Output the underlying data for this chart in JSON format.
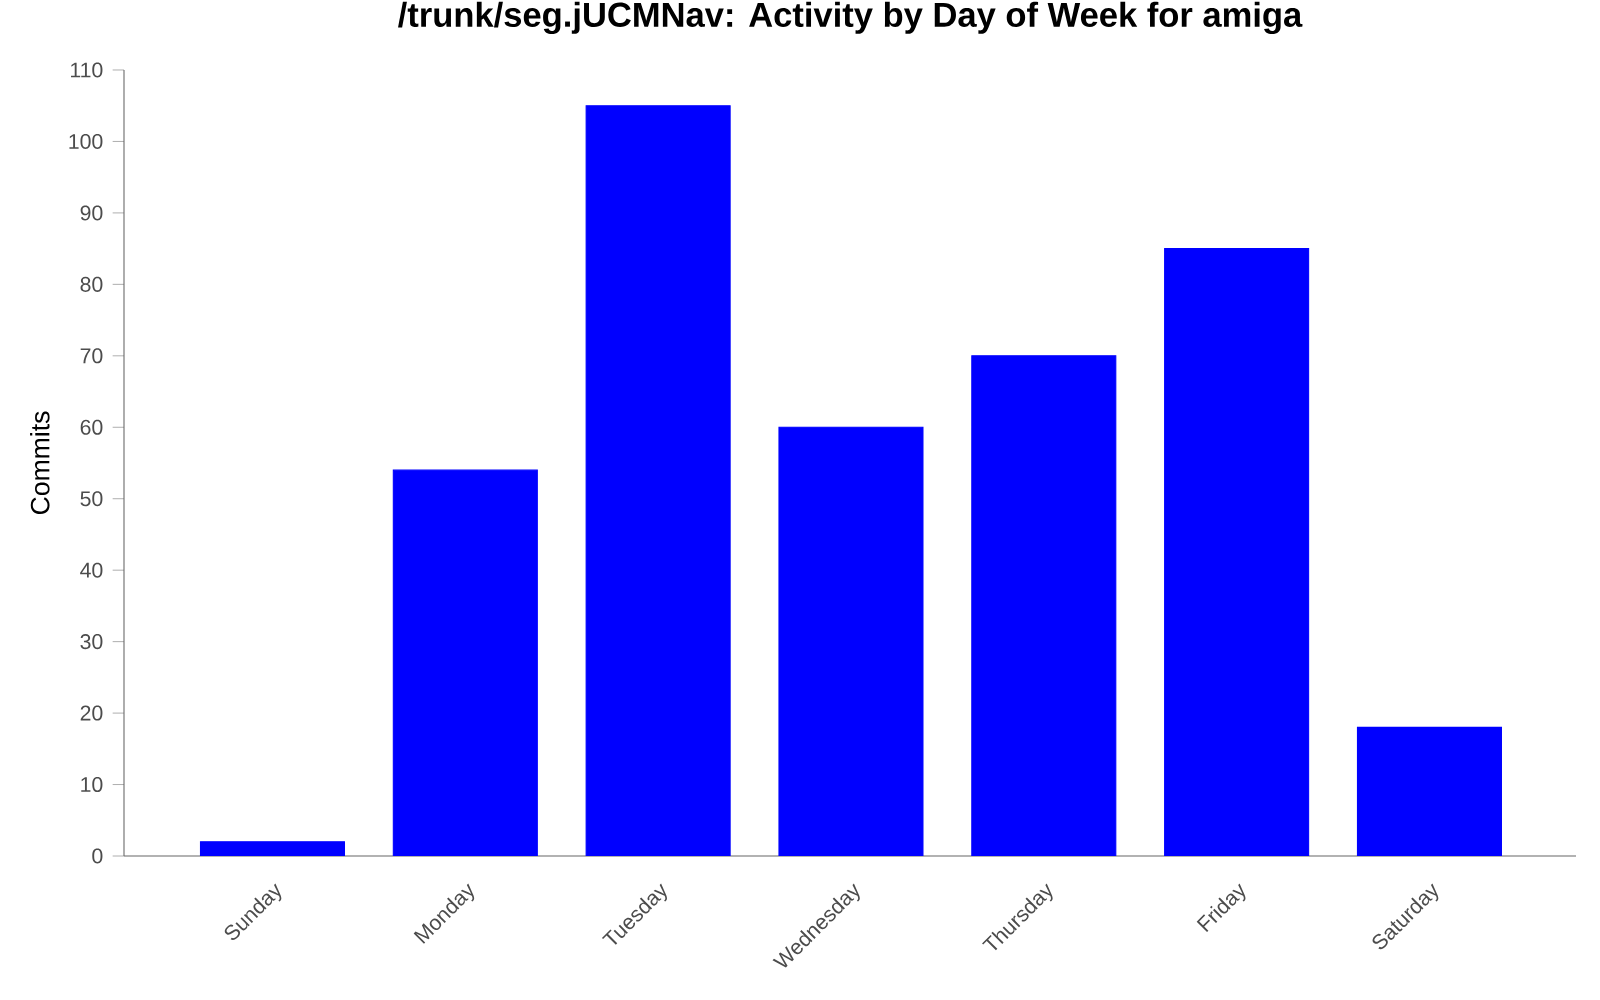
{
  "chart_data": {
    "type": "bar",
    "title": "/trunk/seg.jUCMNav: Activity by Day of Week for amiga",
    "ylabel": "Commits",
    "categories": [
      "Sunday",
      "Monday",
      "Tuesday",
      "Wednesday",
      "Thursday",
      "Friday",
      "Saturday"
    ],
    "values": [
      2,
      54,
      105,
      60,
      70,
      85,
      18
    ],
    "color": "#0000ff",
    "ylim": [
      0,
      110
    ],
    "yticks": [
      0,
      10,
      20,
      30,
      40,
      50,
      60,
      70,
      80,
      90,
      100,
      110
    ],
    "grid": false
  }
}
